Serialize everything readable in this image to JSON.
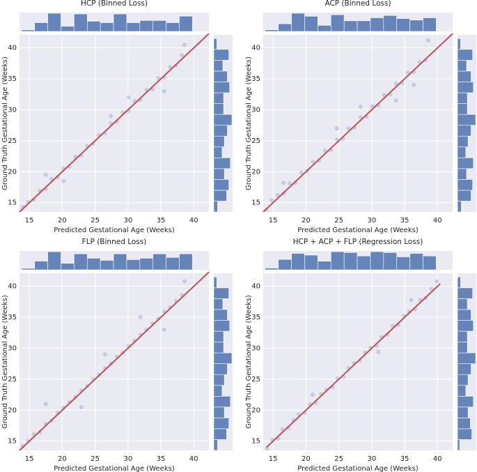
{
  "chart_data": [
    {
      "type": "scatter",
      "title": "HCP (Binned Loss)",
      "x_label": "Predicted Gestational Age (Weeks)",
      "y_label": "Ground Truth Gestational Age (Weeks)",
      "x": [
        14,
        14.8,
        15.7,
        16.6,
        17.5,
        18.4,
        19.3,
        20.2,
        21.1,
        22,
        22.9,
        23.8,
        24.7,
        25.6,
        26.5,
        27.4,
        28.3,
        29.2,
        30.1,
        31,
        31.9,
        32.8,
        33.7,
        34.6,
        35.5,
        36.4,
        37.3,
        38.2,
        38.6,
        17.5,
        27.4,
        35.5,
        30.1,
        20.2
      ],
      "y": [
        14.3,
        15.1,
        15.5,
        16.9,
        17.2,
        18.8,
        19.1,
        20.5,
        20.8,
        22.4,
        22.6,
        24.2,
        24.5,
        25.9,
        26.2,
        27.8,
        28.1,
        29.6,
        29.8,
        31.4,
        31.6,
        33.2,
        33.3,
        35.1,
        35.2,
        36.9,
        37.1,
        38.8,
        40.5,
        19.5,
        29,
        33,
        32,
        18.5
      ],
      "color": "#4c72b0",
      "xlim": [
        13.5,
        42.3
      ],
      "ylim": [
        13.5,
        42.1
      ],
      "xticks": [
        15,
        20,
        25,
        30,
        35,
        40
      ],
      "yticks": [
        15,
        20,
        25,
        30,
        35,
        40
      ],
      "grid": true,
      "fit_line": {
        "x": [
          13.5,
          42.3
        ],
        "y": [
          13.5,
          42.3
        ],
        "color": "#c44e52"
      },
      "top_histogram": {
        "bins": [
          13.8,
          15.8,
          17.8,
          19.8,
          21.8,
          23.8,
          25.8,
          27.8,
          29.8,
          31.8,
          33.8,
          35.8,
          37.8,
          39.8
        ],
        "counts": [
          2,
          12,
          25,
          7,
          24,
          14,
          12,
          24,
          12,
          15,
          15,
          12,
          21
        ]
      },
      "right_histogram": {
        "bins": [
          13.5,
          15.25,
          17,
          18.75,
          20.5,
          22.25,
          24,
          25.75,
          27.5,
          29.25,
          31,
          32.75,
          34.5,
          36.25,
          38,
          39.75,
          41.5
        ],
        "counts": [
          5,
          17,
          20,
          14,
          22,
          11,
          14,
          18,
          24,
          13,
          13,
          21,
          18,
          12,
          20,
          4
        ]
      }
    },
    {
      "type": "scatter",
      "title": "ACP (Binned Loss)",
      "x_label": "Predicted Gestational Age (Weeks)",
      "y_label": "Ground Truth Gestational Age (Weeks)",
      "x": [
        14,
        14.8,
        15.7,
        16.6,
        17.5,
        18.4,
        19.3,
        20.2,
        21.1,
        22,
        22.9,
        23.8,
        24.7,
        25.6,
        26.5,
        27.4,
        28.3,
        29.2,
        30.1,
        31,
        31.9,
        32.8,
        33.7,
        34.6,
        35.5,
        36.4,
        37.3,
        38.2,
        38.6,
        16.6,
        24.7,
        33.7,
        28.3,
        36.4
      ],
      "y": [
        13.9,
        15.4,
        16.2,
        16.5,
        18.1,
        18.2,
        19.9,
        20.1,
        21.6,
        21.8,
        23.4,
        23.5,
        25.2,
        25.3,
        27,
        27.1,
        28.8,
        28.9,
        30.6,
        30.7,
        32.4,
        32.5,
        34.2,
        34.3,
        36,
        36.1,
        37.7,
        38,
        41.2,
        18.2,
        27,
        31.5,
        30.5,
        34
      ],
      "color": "#4c72b0",
      "xlim": [
        13.5,
        42.3
      ],
      "ylim": [
        13.5,
        42.1
      ],
      "xticks": [
        15,
        20,
        25,
        30,
        35,
        40
      ],
      "yticks": [
        15,
        20,
        25,
        30,
        35,
        40
      ],
      "grid": true,
      "fit_line": {
        "x": [
          13.5,
          42.3
        ],
        "y": [
          13.5,
          42.3
        ],
        "color": "#c44e52"
      },
      "top_histogram": {
        "bins": [
          13.8,
          15.8,
          17.8,
          19.8,
          21.8,
          23.8,
          25.8,
          27.8,
          29.8,
          31.8,
          33.8,
          35.8,
          37.8,
          39.8
        ],
        "counts": [
          2,
          10,
          24,
          20,
          8,
          22,
          14,
          14,
          18,
          21,
          17,
          15,
          18
        ]
      },
      "right_histogram": {
        "bins": [
          13.5,
          15.25,
          17,
          18.75,
          20.5,
          22.25,
          24,
          25.75,
          27.5,
          29.25,
          31,
          32.75,
          34.5,
          36.25,
          38,
          39.75,
          41.5
        ],
        "counts": [
          5,
          18,
          20,
          12,
          21,
          11,
          14,
          18,
          24,
          13,
          13,
          21,
          18,
          12,
          20,
          4
        ]
      }
    },
    {
      "type": "scatter",
      "title": "FLP (Binned Loss)",
      "x_label": "Predicted Gestational Age (Weeks)",
      "y_label": "Ground Truth Gestational Age (Weeks)",
      "x": [
        14,
        14.8,
        15.7,
        16.6,
        17.5,
        18.4,
        19.3,
        20.2,
        21.1,
        22,
        22.9,
        23.8,
        24.7,
        25.6,
        26.5,
        27.4,
        28.3,
        29.2,
        30.1,
        31,
        31.9,
        32.8,
        33.7,
        34.6,
        35.5,
        36.4,
        37.3,
        38.2,
        38.6,
        17.5,
        22.9,
        31.9,
        35.5,
        26.5
      ],
      "y": [
        14.2,
        15,
        16.1,
        16.4,
        17.8,
        18.3,
        19.6,
        20.4,
        21.3,
        22.1,
        23.2,
        23.9,
        25,
        25.7,
        26.8,
        27.5,
        28.6,
        29.3,
        30.4,
        31.2,
        32.2,
        33,
        34,
        34.8,
        35.9,
        36.6,
        37.6,
        38.6,
        40.8,
        21,
        20.5,
        35,
        33,
        29
      ],
      "color": "#4c72b0",
      "xlim": [
        13.5,
        42.3
      ],
      "ylim": [
        13.5,
        42.1
      ],
      "xticks": [
        15,
        20,
        25,
        30,
        35,
        40
      ],
      "yticks": [
        15,
        20,
        25,
        30,
        35,
        40
      ],
      "grid": true,
      "fit_line": {
        "x": [
          13.5,
          42.3
        ],
        "y": [
          13.5,
          42.3
        ],
        "color": "#c44e52"
      },
      "top_histogram": {
        "bins": [
          13.8,
          15.8,
          17.8,
          19.8,
          21.8,
          23.8,
          25.8,
          27.8,
          29.8,
          31.8,
          33.8,
          35.8,
          37.8,
          39.8
        ],
        "counts": [
          2,
          12,
          25,
          9,
          22,
          16,
          13,
          22,
          14,
          16,
          22,
          17,
          22
        ]
      },
      "right_histogram": {
        "bins": [
          13.5,
          15.25,
          17,
          18.75,
          20.5,
          22.25,
          24,
          25.75,
          27.5,
          29.25,
          31,
          32.75,
          34.5,
          36.25,
          38,
          39.75,
          41.5
        ],
        "counts": [
          5,
          17,
          20,
          14,
          22,
          11,
          14,
          18,
          24,
          13,
          13,
          21,
          18,
          12,
          20,
          4
        ]
      }
    },
    {
      "type": "scatter",
      "title": "HCP + ACP + FLP (Regression Loss)",
      "x_label": "Predicted Gestational Age (Weeks)",
      "y_label": "Ground Truth Gestational Age (Weeks)",
      "x": [
        14.1,
        14.9,
        15.8,
        16.4,
        17.3,
        18.1,
        18.9,
        19.8,
        20.6,
        21.5,
        22.3,
        23.1,
        24,
        24.8,
        25.7,
        26.5,
        27.3,
        28.2,
        29,
        29.8,
        30.7,
        31.5,
        32.4,
        33.2,
        34,
        34.9,
        35.7,
        36.6,
        37.4,
        38.2,
        39.1,
        39.9,
        21,
        31,
        36
      ],
      "y": [
        13.8,
        15.2,
        15.4,
        16.9,
        17.1,
        18.4,
        19.3,
        19.6,
        20.9,
        21.2,
        22.6,
        23.3,
        23.7,
        25.1,
        25.4,
        26.8,
        27.6,
        28,
        29.3,
        30.1,
        30.4,
        31.8,
        32.2,
        33.6,
        33.8,
        35.2,
        35.9,
        36.3,
        37.8,
        38.1,
        39.6,
        40.8,
        22.5,
        29.4,
        37.8
      ],
      "color": "#4c72b0",
      "xlim": [
        13.5,
        42.3
      ],
      "ylim": [
        13.5,
        42.1
      ],
      "xticks": [
        15,
        20,
        25,
        30,
        35,
        40
      ],
      "yticks": [
        15,
        20,
        25,
        30,
        35,
        40
      ],
      "grid": true,
      "fit_line": {
        "x": [
          14,
          40.4
        ],
        "y": [
          14,
          40.4
        ],
        "color": "#c44e52"
      },
      "top_histogram": {
        "bins": [
          13.8,
          15.8,
          17.8,
          19.8,
          21.8,
          23.8,
          25.8,
          27.8,
          29.8,
          31.8,
          33.8,
          35.8,
          37.8,
          39.8
        ],
        "counts": [
          2,
          12,
          19,
          17,
          10,
          21,
          20,
          16,
          21,
          20,
          15,
          19,
          16,
          4
        ]
      },
      "right_histogram": {
        "bins": [
          13.5,
          15.25,
          17,
          18.75,
          20.5,
          22.25,
          24,
          25.75,
          27.5,
          29.25,
          31,
          32.75,
          34.5,
          36.25,
          38,
          39.75,
          41.5
        ],
        "counts": [
          3,
          19,
          17,
          14,
          21,
          11,
          14,
          18,
          24,
          13,
          13,
          21,
          18,
          13,
          20,
          4
        ]
      }
    }
  ]
}
